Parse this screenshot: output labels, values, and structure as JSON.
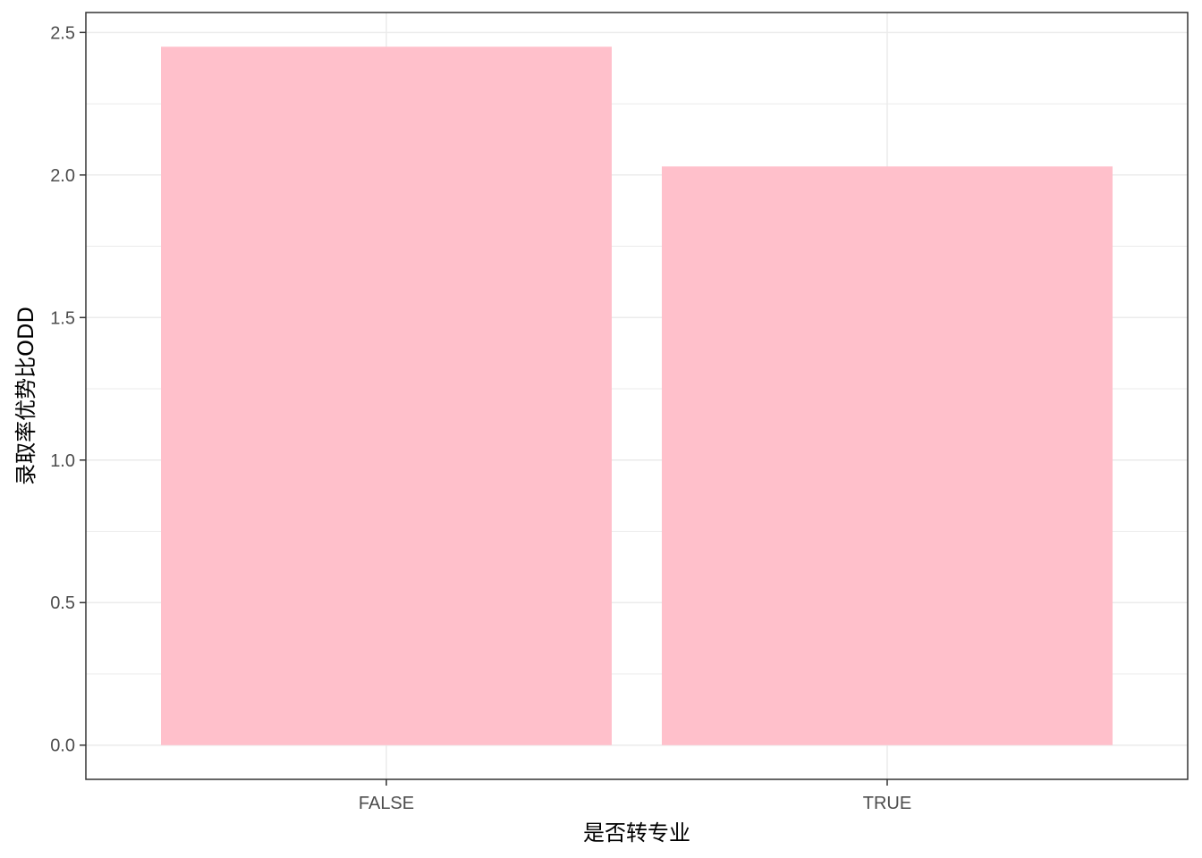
{
  "chart_data": {
    "type": "bar",
    "title": "",
    "xlabel": "是否转专业",
    "ylabel": "录取率优势比ODD",
    "categories": [
      "FALSE",
      "TRUE"
    ],
    "values": [
      2.45,
      2.03
    ],
    "ylim": [
      -0.12,
      2.57
    ],
    "yticks": [
      0.0,
      0.5,
      1.0,
      1.5,
      2.0,
      2.5
    ],
    "ytick_labels": [
      "0.0",
      "0.5",
      "1.0",
      "1.5",
      "2.0",
      "2.5"
    ],
    "grid": true,
    "legend": "none",
    "bar_color": "#FFC0CB",
    "grid_color": "#EBEBEB",
    "panel_border_color": "#333333"
  }
}
